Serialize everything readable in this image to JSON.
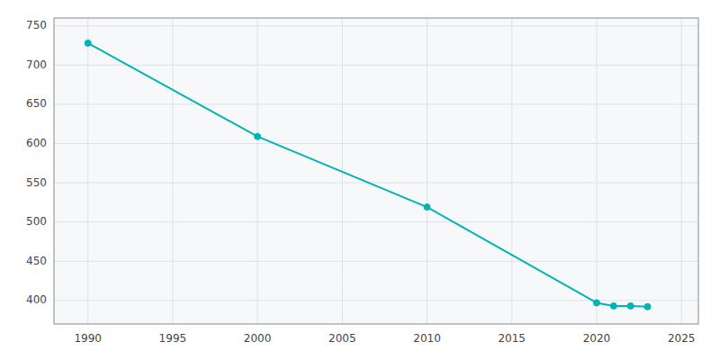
{
  "chart_data": {
    "type": "line",
    "x": [
      1990,
      2000,
      2010,
      2020,
      2021,
      2022,
      2023
    ],
    "values": [
      728,
      609,
      519,
      397,
      393,
      393,
      392
    ],
    "color": "#00b4b4",
    "marker": "circle",
    "xlim": [
      1988,
      2026
    ],
    "ylim": [
      370,
      760
    ],
    "xticks": [
      1990,
      1995,
      2000,
      2005,
      2010,
      2015,
      2020,
      2025
    ],
    "yticks": [
      400,
      450,
      500,
      550,
      600,
      650,
      700,
      750
    ],
    "grid": true
  }
}
